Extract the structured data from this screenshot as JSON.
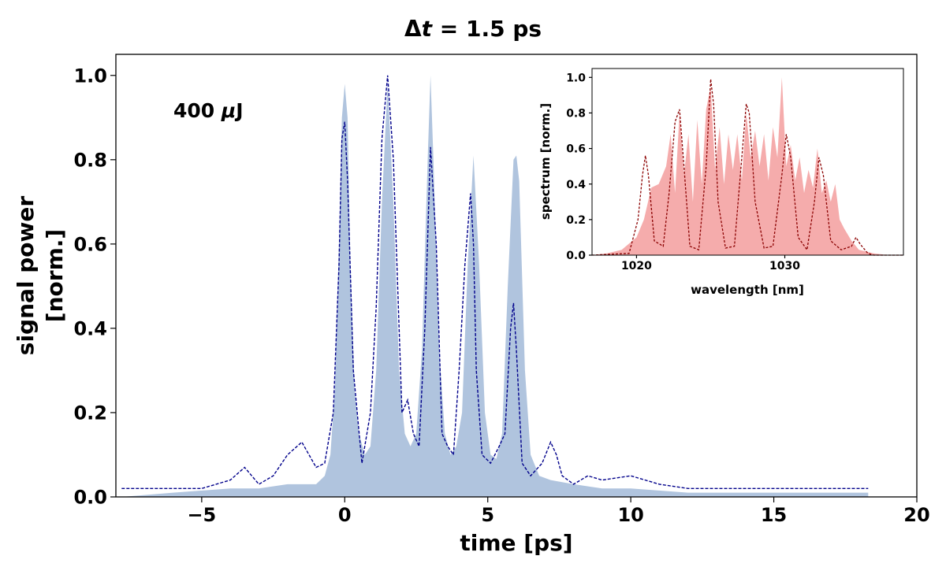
{
  "chart_data": [
    {
      "type": "area",
      "title": "Δt = 1.5 ps",
      "title_parts": [
        "Δ",
        "t",
        " = 1.5 ps"
      ],
      "annotation": "400 μJ",
      "annotation_parts": [
        "400 ",
        "μ",
        "J"
      ],
      "xlabel": "time [ps]",
      "ylabel_lines": [
        "signal power",
        "[norm.]"
      ],
      "xlim": [
        -8,
        20
      ],
      "ylim": [
        0,
        1.05
      ],
      "xticks": [
        -5,
        0,
        5,
        10,
        15,
        20
      ],
      "xtick_labels": [
        "−5",
        "0",
        "5",
        "10",
        "15",
        "20"
      ],
      "yticks": [
        0.0,
        0.2,
        0.4,
        0.6,
        0.8,
        1.0
      ],
      "ytick_labels": [
        "0.0",
        "0.2",
        "0.4",
        "0.6",
        "0.8",
        "1.0"
      ],
      "series": [
        {
          "name": "measured (filled)",
          "style": "filled",
          "color": "#b0c4de",
          "x": [
            -7.8,
            -6,
            -4,
            -3,
            -2,
            -1,
            -0.7,
            -0.5,
            -0.35,
            -0.2,
            -0.1,
            0,
            0.1,
            0.2,
            0.35,
            0.5,
            0.7,
            0.9,
            1.1,
            1.3,
            1.5,
            1.7,
            1.9,
            2.1,
            2.3,
            2.5,
            2.7,
            2.9,
            3.0,
            3.1,
            3.3,
            3.5,
            3.7,
            3.9,
            4.1,
            4.3,
            4.5,
            4.7,
            4.9,
            5.1,
            5.3,
            5.5,
            5.7,
            5.9,
            6.0,
            6.1,
            6.3,
            6.5,
            6.8,
            7.2,
            8,
            9,
            10,
            12,
            15,
            18.3
          ],
          "y": [
            0.0,
            0.01,
            0.02,
            0.02,
            0.03,
            0.03,
            0.05,
            0.1,
            0.25,
            0.6,
            0.9,
            0.98,
            0.9,
            0.55,
            0.25,
            0.15,
            0.1,
            0.12,
            0.3,
            0.7,
            0.98,
            0.7,
            0.3,
            0.15,
            0.12,
            0.15,
            0.35,
            0.8,
            1.0,
            0.8,
            0.35,
            0.15,
            0.1,
            0.12,
            0.2,
            0.55,
            0.81,
            0.55,
            0.2,
            0.1,
            0.09,
            0.15,
            0.5,
            0.8,
            0.81,
            0.75,
            0.3,
            0.1,
            0.05,
            0.04,
            0.03,
            0.02,
            0.02,
            0.01,
            0.01,
            0.01
          ]
        },
        {
          "name": "simulated (dashed)",
          "style": "dashed",
          "color": "#00008b",
          "x": [
            -7.8,
            -7,
            -6,
            -5,
            -4,
            -3.5,
            -3,
            -2.5,
            -2,
            -1.5,
            -1,
            -0.7,
            -0.4,
            -0.2,
            -0.1,
            0,
            0.1,
            0.3,
            0.6,
            0.9,
            1.1,
            1.3,
            1.5,
            1.7,
            2.0,
            2.2,
            2.4,
            2.6,
            2.8,
            3.0,
            3.2,
            3.4,
            3.6,
            3.8,
            4.0,
            4.2,
            4.4,
            4.5,
            4.6,
            4.8,
            5.1,
            5.4,
            5.6,
            5.8,
            5.9,
            6.0,
            6.2,
            6.5,
            6.9,
            7.2,
            7.4,
            7.6,
            8,
            8.5,
            9,
            10,
            11,
            12,
            14,
            16,
            18.3
          ],
          "y": [
            0.02,
            0.02,
            0.02,
            0.02,
            0.04,
            0.07,
            0.03,
            0.05,
            0.1,
            0.13,
            0.07,
            0.08,
            0.2,
            0.55,
            0.85,
            0.89,
            0.75,
            0.3,
            0.08,
            0.2,
            0.45,
            0.85,
            1.0,
            0.8,
            0.2,
            0.23,
            0.15,
            0.12,
            0.4,
            0.83,
            0.6,
            0.15,
            0.12,
            0.1,
            0.3,
            0.55,
            0.72,
            0.6,
            0.3,
            0.1,
            0.08,
            0.12,
            0.15,
            0.4,
            0.46,
            0.35,
            0.08,
            0.05,
            0.08,
            0.13,
            0.1,
            0.05,
            0.03,
            0.05,
            0.04,
            0.05,
            0.03,
            0.02,
            0.02,
            0.02,
            0.02
          ]
        }
      ]
    },
    {
      "type": "area",
      "role": "inset",
      "xlabel": "wavelength [nm]",
      "ylabel": "spectrum [norm.]",
      "xlim": [
        1017,
        1038
      ],
      "ylim": [
        0,
        1.05
      ],
      "xticks": [
        1020,
        1030
      ],
      "xtick_labels": [
        "1020",
        "1030"
      ],
      "yticks": [
        0.0,
        0.2,
        0.4,
        0.6,
        0.8,
        1.0
      ],
      "ytick_labels": [
        "0.0",
        "0.2",
        "0.4",
        "0.6",
        "0.8",
        "1.0"
      ],
      "series": [
        {
          "name": "measured spectrum (filled)",
          "style": "filled",
          "color": "#f08080",
          "x": [
            1017,
            1018,
            1019,
            1020,
            1020.5,
            1021,
            1021.5,
            1022,
            1022.3,
            1022.6,
            1022.9,
            1023.2,
            1023.5,
            1023.8,
            1024.1,
            1024.4,
            1024.7,
            1025,
            1025.3,
            1025.6,
            1025.9,
            1026.2,
            1026.5,
            1026.8,
            1027.1,
            1027.4,
            1027.7,
            1028,
            1028.3,
            1028.6,
            1028.9,
            1029.2,
            1029.5,
            1029.8,
            1030.1,
            1030.4,
            1030.7,
            1031,
            1031.3,
            1031.6,
            1031.9,
            1032.2,
            1032.5,
            1032.8,
            1033.1,
            1033.4,
            1033.7,
            1034,
            1034.5,
            1035,
            1036,
            1037,
            1038
          ],
          "y": [
            0,
            0.01,
            0.03,
            0.1,
            0.2,
            0.38,
            0.4,
            0.5,
            0.68,
            0.35,
            0.8,
            0.45,
            0.68,
            0.3,
            0.76,
            0.4,
            0.82,
            0.95,
            0.48,
            0.72,
            0.4,
            0.68,
            0.48,
            0.68,
            0.42,
            0.8,
            0.55,
            0.7,
            0.5,
            0.68,
            0.42,
            0.72,
            0.55,
            1.0,
            0.5,
            0.62,
            0.42,
            0.55,
            0.35,
            0.48,
            0.38,
            0.6,
            0.35,
            0.42,
            0.3,
            0.4,
            0.2,
            0.15,
            0.08,
            0.03,
            0.01,
            0,
            0
          ]
        },
        {
          "name": "simulated spectrum (dashed)",
          "style": "dashed",
          "color": "#8b0000",
          "x": [
            1017,
            1019.5,
            1020.1,
            1020.4,
            1020.6,
            1020.8,
            1021.2,
            1021.8,
            1022.2,
            1022.6,
            1022.9,
            1023.2,
            1023.6,
            1024.2,
            1024.7,
            1025.0,
            1025.2,
            1025.5,
            1026.0,
            1026.6,
            1027.1,
            1027.4,
            1027.6,
            1028.0,
            1028.6,
            1029.2,
            1029.8,
            1030.1,
            1030.4,
            1030.9,
            1031.5,
            1032.0,
            1032.3,
            1032.6,
            1033.1,
            1033.8,
            1034.5,
            1034.8,
            1035.1,
            1035.6,
            1036,
            1038
          ],
          "y": [
            0,
            0.01,
            0.2,
            0.45,
            0.56,
            0.45,
            0.08,
            0.05,
            0.35,
            0.75,
            0.82,
            0.5,
            0.05,
            0.03,
            0.5,
            0.99,
            0.85,
            0.3,
            0.04,
            0.05,
            0.55,
            0.85,
            0.8,
            0.3,
            0.04,
            0.05,
            0.45,
            0.68,
            0.55,
            0.1,
            0.03,
            0.3,
            0.55,
            0.45,
            0.08,
            0.03,
            0.05,
            0.1,
            0.06,
            0.01,
            0,
            0
          ]
        }
      ]
    }
  ]
}
